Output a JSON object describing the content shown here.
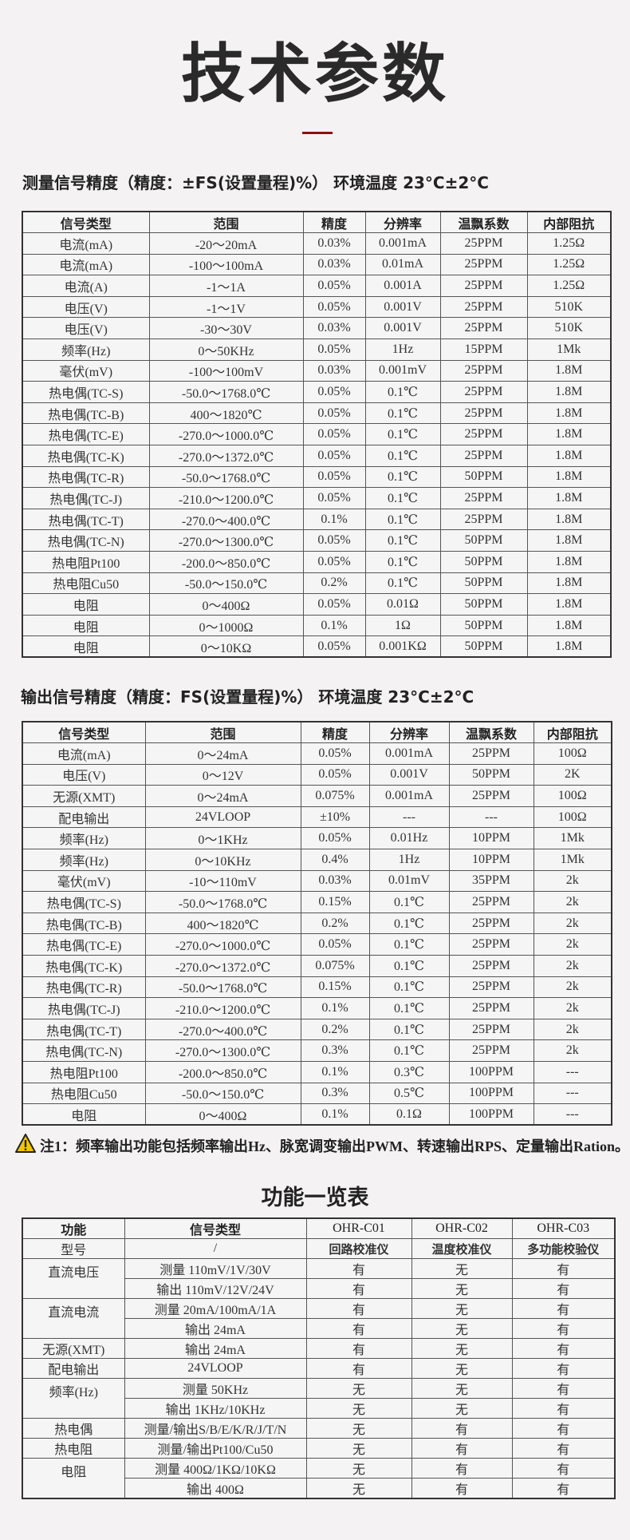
{
  "title": "技术参数",
  "accent_color": "#8b1010",
  "measure": {
    "heading": "测量信号精度（精度：±FS(设置量程)%） 环境温度 23°C±2°C",
    "headers": [
      "信号类型",
      "范围",
      "精度",
      "分辨率",
      "温飘系数",
      "内部阻抗"
    ],
    "rows": [
      [
        "电流(mA)",
        "-20～20mA",
        "0.03%",
        "0.001mA",
        "25PPM",
        "1.25Ω"
      ],
      [
        "电流(mA)",
        "-100～100mA",
        "0.03%",
        "0.01mA",
        "25PPM",
        "1.25Ω"
      ],
      [
        "电流(A)",
        "-1～1A",
        "0.05%",
        "0.001A",
        "25PPM",
        "1.25Ω"
      ],
      [
        "电压(V)",
        "-1～1V",
        "0.05%",
        "0.001V",
        "25PPM",
        "510K"
      ],
      [
        "电压(V)",
        "-30～30V",
        "0.03%",
        "0.001V",
        "25PPM",
        "510K"
      ],
      [
        "频率(Hz)",
        "0～50KHz",
        "0.05%",
        "1Hz",
        "15PPM",
        "1Mk"
      ],
      [
        "毫伏(mV)",
        "-100～100mV",
        "0.03%",
        "0.001mV",
        "25PPM",
        "1.8M"
      ],
      [
        "热电偶(TC-S)",
        "-50.0～1768.0℃",
        "0.05%",
        "0.1℃",
        "25PPM",
        "1.8M"
      ],
      [
        "热电偶(TC-B)",
        "400～1820℃",
        "0.05%",
        "0.1℃",
        "25PPM",
        "1.8M"
      ],
      [
        "热电偶(TC-E)",
        "-270.0～1000.0℃",
        "0.05%",
        "0.1℃",
        "25PPM",
        "1.8M"
      ],
      [
        "热电偶(TC-K)",
        "-270.0～1372.0℃",
        "0.05%",
        "0.1℃",
        "25PPM",
        "1.8M"
      ],
      [
        "热电偶(TC-R)",
        "-50.0～1768.0℃",
        "0.05%",
        "0.1℃",
        "50PPM",
        "1.8M"
      ],
      [
        "热电偶(TC-J)",
        "-210.0～1200.0℃",
        "0.05%",
        "0.1℃",
        "25PPM",
        "1.8M"
      ],
      [
        "热电偶(TC-T)",
        "-270.0～400.0℃",
        "0.1%",
        "0.1℃",
        "25PPM",
        "1.8M"
      ],
      [
        "热电偶(TC-N)",
        "-270.0～1300.0℃",
        "0.05%",
        "0.1℃",
        "50PPM",
        "1.8M"
      ],
      [
        "热电阻Pt100",
        "-200.0～850.0℃",
        "0.05%",
        "0.1℃",
        "50PPM",
        "1.8M"
      ],
      [
        "热电阻Cu50",
        "-50.0～150.0℃",
        "0.2%",
        "0.1℃",
        "50PPM",
        "1.8M"
      ],
      [
        "电阻",
        "0～400Ω",
        "0.05%",
        "0.01Ω",
        "50PPM",
        "1.8M"
      ],
      [
        "电阻",
        "0～1000Ω",
        "0.1%",
        "1Ω",
        "50PPM",
        "1.8M"
      ],
      [
        "电阻",
        "0～10KΩ",
        "0.05%",
        "0.001KΩ",
        "50PPM",
        "1.8M"
      ]
    ]
  },
  "output": {
    "heading": "输出信号精度（精度：FS(设置量程)%） 环境温度 23°C±2°C",
    "headers": [
      "信号类型",
      "范围",
      "精度",
      "分辨率",
      "温飘系数",
      "内部阻抗"
    ],
    "rows": [
      [
        "电流(mA)",
        "0～24mA",
        "0.05%",
        "0.001mA",
        "25PPM",
        "100Ω"
      ],
      [
        "电压(V)",
        "0～12V",
        "0.05%",
        "0.001V",
        "50PPM",
        "2K"
      ],
      [
        "无源(XMT)",
        "0～24mA",
        "0.075%",
        "0.001mA",
        "25PPM",
        "100Ω"
      ],
      [
        "配电输出",
        "24VLOOP",
        "±10%",
        "---",
        "---",
        "100Ω"
      ],
      [
        "频率(Hz)",
        "0～1KHz",
        "0.05%",
        "0.01Hz",
        "10PPM",
        "1Mk"
      ],
      [
        "频率(Hz)",
        "0～10KHz",
        "0.4%",
        "1Hz",
        "10PPM",
        "1Mk"
      ],
      [
        "毫伏(mV)",
        "-10～110mV",
        "0.03%",
        "0.01mV",
        "35PPM",
        "2k"
      ],
      [
        "热电偶(TC-S)",
        "-50.0～1768.0℃",
        "0.15%",
        "0.1℃",
        "25PPM",
        "2k"
      ],
      [
        "热电偶(TC-B)",
        "400～1820℃",
        "0.2%",
        "0.1℃",
        "25PPM",
        "2k"
      ],
      [
        "热电偶(TC-E)",
        "-270.0～1000.0℃",
        "0.05%",
        "0.1℃",
        "25PPM",
        "2k"
      ],
      [
        "热电偶(TC-K)",
        "-270.0～1372.0℃",
        "0.075%",
        "0.1℃",
        "25PPM",
        "2k"
      ],
      [
        "热电偶(TC-R)",
        "-50.0～1768.0℃",
        "0.15%",
        "0.1℃",
        "25PPM",
        "2k"
      ],
      [
        "热电偶(TC-J)",
        "-210.0～1200.0℃",
        "0.1%",
        "0.1℃",
        "25PPM",
        "2k"
      ],
      [
        "热电偶(TC-T)",
        "-270.0～400.0℃",
        "0.2%",
        "0.1℃",
        "25PPM",
        "2k"
      ],
      [
        "热电偶(TC-N)",
        "-270.0～1300.0℃",
        "0.3%",
        "0.1℃",
        "25PPM",
        "2k"
      ],
      [
        "热电阻Pt100",
        "-200.0～850.0℃",
        "0.1%",
        "0.3℃",
        "100PPM",
        "---"
      ],
      [
        "热电阻Cu50",
        "-50.0～150.0℃",
        "0.3%",
        "0.5℃",
        "100PPM",
        "---"
      ],
      [
        "电阻",
        "0～400Ω",
        "0.1%",
        "0.1Ω",
        "100PPM",
        "---"
      ]
    ]
  },
  "note": {
    "icon": "warning-triangle-icon",
    "text": "注1：频率输出功能包括频率输出Hz、脉宽调变输出PWM、转速输出RPS、定量输出Ration。"
  },
  "functions": {
    "title": "功能一览表",
    "headers": [
      "功能",
      "信号类型",
      "OHR-C01",
      "OHR-C02",
      "OHR-C03"
    ],
    "model_row": [
      "型号",
      "/",
      "回路校准仪",
      "温度校准仪",
      "多功能校验仪"
    ],
    "groups": [
      {
        "name": "直流电压",
        "rows": [
          [
            "测量 110mV/1V/30V",
            "有",
            "无",
            "有"
          ],
          [
            "输出 110mV/12V/24V",
            "有",
            "无",
            "有"
          ]
        ]
      },
      {
        "name": "直流电流",
        "rows": [
          [
            "测量 20mA/100mA/1A",
            "有",
            "无",
            "有"
          ],
          [
            "输出 24mA",
            "有",
            "无",
            "有"
          ]
        ]
      },
      {
        "name": "无源(XMT)",
        "rows": [
          [
            "输出 24mA",
            "有",
            "无",
            "有"
          ]
        ]
      },
      {
        "name": "配电输出",
        "rows": [
          [
            "24VLOOP",
            "有",
            "无",
            "有"
          ]
        ]
      },
      {
        "name": "频率(Hz)",
        "rows": [
          [
            "测量 50KHz",
            "无",
            "无",
            "有"
          ],
          [
            "输出 1KHz/10KHz",
            "无",
            "无",
            "有"
          ]
        ]
      },
      {
        "name": "热电偶",
        "rows": [
          [
            "测量/输出S/B/E/K/R/J/T/N",
            "无",
            "有",
            "有"
          ]
        ]
      },
      {
        "name": "热电阻",
        "rows": [
          [
            "测量/输出Pt100/Cu50",
            "无",
            "有",
            "有"
          ]
        ]
      },
      {
        "name": "电阻",
        "rows": [
          [
            "测量 400Ω/1KΩ/10KΩ",
            "无",
            "有",
            "有"
          ],
          [
            "输出 400Ω",
            "无",
            "有",
            "有"
          ]
        ]
      }
    ]
  }
}
